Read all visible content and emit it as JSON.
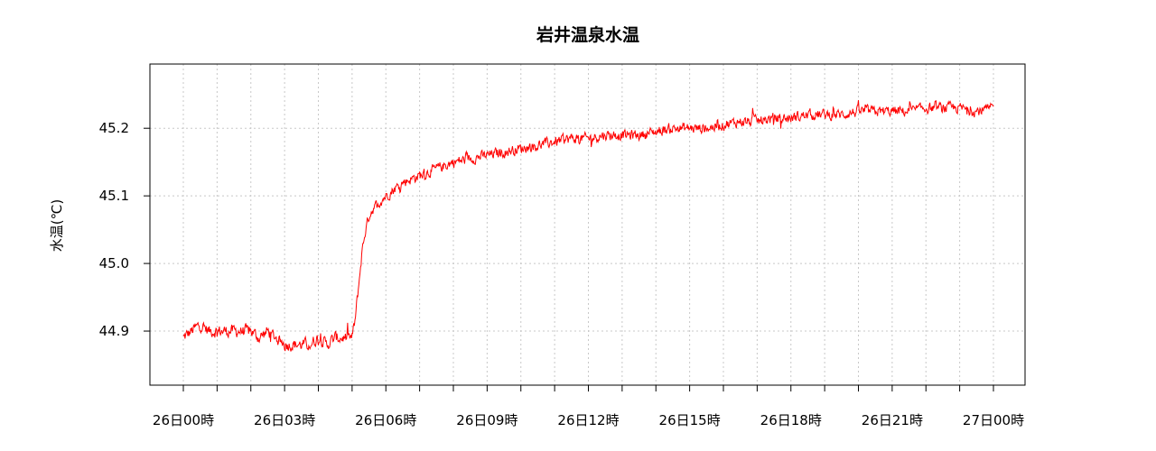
{
  "chart_data": {
    "type": "line",
    "title": "岩井温泉水温",
    "ylabel": "水温(℃)",
    "xlabel": "",
    "xlim": [
      0,
      24
    ],
    "ylim": [
      44.82,
      45.295
    ],
    "grid": true,
    "x_minor_ticks_hours": [
      0,
      1,
      2,
      3,
      4,
      5,
      6,
      7,
      8,
      9,
      10,
      11,
      12,
      13,
      14,
      15,
      16,
      17,
      18,
      19,
      20,
      21,
      22,
      23,
      24
    ],
    "x_ticks": [
      {
        "hour": 0,
        "label": "26日00時"
      },
      {
        "hour": 3,
        "label": "26日03時"
      },
      {
        "hour": 6,
        "label": "26日06時"
      },
      {
        "hour": 9,
        "label": "26日09時"
      },
      {
        "hour": 12,
        "label": "26日12時"
      },
      {
        "hour": 15,
        "label": "26日15時"
      },
      {
        "hour": 18,
        "label": "26日18時"
      },
      {
        "hour": 21,
        "label": "26日21時"
      },
      {
        "hour": 24,
        "label": "27日00時"
      }
    ],
    "y_ticks": [
      {
        "value": 44.9,
        "label": "44.9"
      },
      {
        "value": 45.0,
        "label": "45.0"
      },
      {
        "value": 45.1,
        "label": "45.1"
      },
      {
        "value": 45.2,
        "label": "45.2"
      }
    ],
    "series": [
      {
        "name": "",
        "color": "#ff0000",
        "x": [
          0,
          0.25,
          0.5,
          0.75,
          1.0,
          1.25,
          1.5,
          1.75,
          2.0,
          2.25,
          2.5,
          2.75,
          3.0,
          3.25,
          3.5,
          3.75,
          4.0,
          4.25,
          4.5,
          4.75,
          5.0,
          5.1,
          5.2,
          5.3,
          5.4,
          5.5,
          5.6,
          5.8,
          6.0,
          6.25,
          6.5,
          7.0,
          7.5,
          8.0,
          8.5,
          9.0,
          9.5,
          10.0,
          10.5,
          11.0,
          11.5,
          12.0,
          12.5,
          13.0,
          13.5,
          14.0,
          14.5,
          15.0,
          15.5,
          16.0,
          16.5,
          17.0,
          17.5,
          18.0,
          18.5,
          19.0,
          19.5,
          20.0,
          20.5,
          21.0,
          21.5,
          22.0,
          22.5,
          23.0,
          23.5,
          24.0
        ],
        "y": [
          44.89,
          44.9,
          44.91,
          44.9,
          44.9,
          44.9,
          44.9,
          44.9,
          44.9,
          44.89,
          44.9,
          44.89,
          44.88,
          44.88,
          44.88,
          44.88,
          44.89,
          44.88,
          44.89,
          44.89,
          44.89,
          44.92,
          44.97,
          45.02,
          45.05,
          45.07,
          45.08,
          45.09,
          45.1,
          45.11,
          45.12,
          45.13,
          45.14,
          45.15,
          45.155,
          45.16,
          45.165,
          45.17,
          45.175,
          45.18,
          45.185,
          45.185,
          45.19,
          45.19,
          45.19,
          45.195,
          45.2,
          45.2,
          45.2,
          45.205,
          45.21,
          45.21,
          45.215,
          45.215,
          45.22,
          45.22,
          45.22,
          45.225,
          45.225,
          45.225,
          45.225,
          45.23,
          45.23,
          45.23,
          45.225,
          45.23
        ]
      }
    ]
  }
}
